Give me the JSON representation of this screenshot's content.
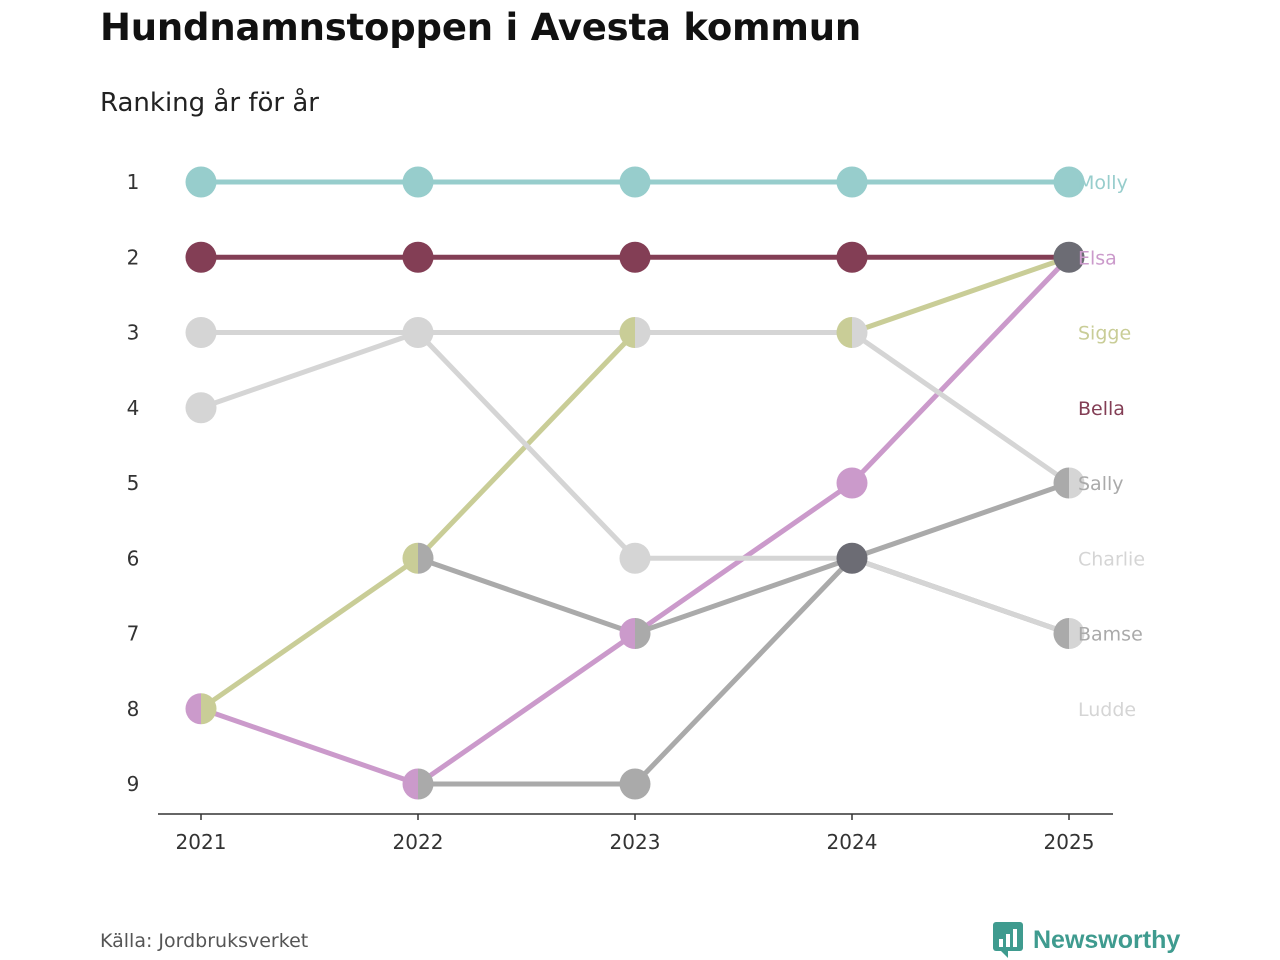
{
  "header": {
    "title": "Hundnamnstoppen i Avesta kommun",
    "subtitle": "Ranking år för år"
  },
  "footer": {
    "source": "Källa: Jordbruksverket",
    "brand": "Newsworthy"
  },
  "colors": {
    "axis": "#333333",
    "tick_text": "#333333",
    "conflict_dot": "#6c6c74"
  },
  "chart_data": {
    "type": "line",
    "title": "Hundnamnstoppen i Avesta kommun",
    "subtitle": "Ranking år för år",
    "xlabel": "",
    "ylabel": "",
    "x": [
      2021,
      2022,
      2023,
      2024,
      2025
    ],
    "y_ticks": [
      1,
      2,
      3,
      4,
      5,
      6,
      7,
      8,
      9
    ],
    "ylim": [
      1,
      9
    ],
    "y_inverted": true,
    "grid": false,
    "series": [
      {
        "name": "Molly",
        "label_rank": 1,
        "color": "#97cdcc",
        "values": [
          1,
          1,
          1,
          1,
          1
        ]
      },
      {
        "name": "Elsa",
        "label_rank": 2,
        "color": "#cb9acb",
        "values": [
          8,
          9,
          7,
          5,
          2
        ]
      },
      {
        "name": "Sigge",
        "label_rank": 3,
        "color": "#c9cd97",
        "values": [
          8,
          6,
          3,
          3,
          2
        ]
      },
      {
        "name": "Bella",
        "label_rank": 4,
        "color": "#833e55",
        "values": [
          2,
          2,
          2,
          2,
          2
        ]
      },
      {
        "name": "Sally",
        "label_rank": 5,
        "color": "#aaaaaa",
        "values": [
          null,
          6,
          7,
          6,
          5
        ]
      },
      {
        "name": "Charlie",
        "label_rank": 6,
        "color": "#d5d5d5",
        "values": [
          3,
          3,
          3,
          3,
          5
        ]
      },
      {
        "name": "Bamse",
        "label_rank": 7,
        "color": "#aaaaaa",
        "values": [
          null,
          9,
          9,
          6,
          7
        ]
      },
      {
        "name": "Ludde",
        "label_rank": 8,
        "color": "#d5d5d5",
        "values": [
          4,
          3,
          6,
          6,
          7
        ]
      }
    ]
  }
}
